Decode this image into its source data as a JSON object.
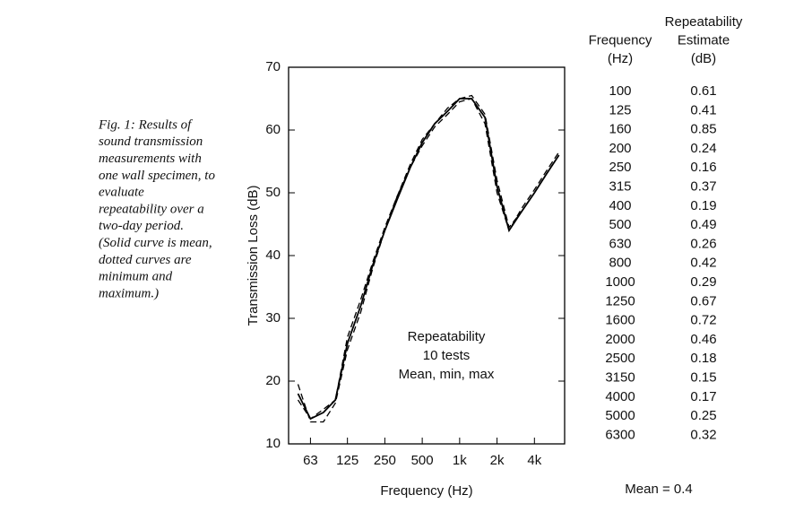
{
  "caption": [
    "Fig. 1: Results of",
    "sound transmission",
    "measurements with",
    "one wall specimen, to",
    "evaluate",
    "repeatability over a",
    "two-day period.",
    "(Solid curve is mean,",
    "dotted curves are",
    "minimum and",
    "maximum.)"
  ],
  "chart_data": {
    "type": "line",
    "x_label": "Frequency (Hz)",
    "y_label": "Transmission Loss (dB)",
    "annotation": [
      "Repeatability",
      "10 tests",
      "Mean, min, max"
    ],
    "x": [
      50,
      63,
      80,
      100,
      125,
      160,
      200,
      250,
      315,
      400,
      500,
      630,
      800,
      1000,
      1250,
      1600,
      2000,
      2500,
      3150,
      4000,
      5000,
      6300
    ],
    "x_log": true,
    "xlim": [
      42,
      7000
    ],
    "xticks": [
      63,
      125,
      250,
      500,
      {
        "value": 1000,
        "label": "1k"
      },
      {
        "value": 2000,
        "label": "2k"
      },
      {
        "value": 4000,
        "label": "4k"
      }
    ],
    "ylim": [
      10,
      70
    ],
    "yticks": [
      10,
      20,
      30,
      40,
      50,
      60,
      70
    ],
    "series": [
      {
        "color": "#000000",
        "dash": false,
        "values": [
          18,
          14,
          15,
          17,
          26,
          32,
          38.5,
          44,
          49,
          54,
          58,
          61,
          63,
          65,
          65,
          62,
          51,
          44,
          47,
          50,
          53,
          56
        ]
      },
      {
        "color": "#000000",
        "dash": true,
        "values": [
          19.5,
          13.5,
          13.5,
          16.5,
          25,
          31,
          38,
          44,
          49.5,
          54,
          57.5,
          60.5,
          62.5,
          64.5,
          65,
          61,
          50,
          44,
          47.5,
          50.5,
          53.5,
          56.5
        ]
      },
      {
        "color": "#000000",
        "dash": true,
        "values": [
          17,
          14,
          15.5,
          17,
          27,
          33,
          39,
          44.5,
          49.5,
          54.5,
          58.5,
          61,
          63.5,
          65,
          65.5,
          62.5,
          52,
          44.5,
          47,
          50,
          53,
          56
        ]
      }
    ]
  },
  "table": {
    "header": [
      [
        "Frequency",
        "(Hz)"
      ],
      [
        "Repeatability",
        "Estimate",
        "(dB)"
      ]
    ],
    "rows": [
      [
        "100",
        "0.61"
      ],
      [
        "125",
        "0.41"
      ],
      [
        "160",
        "0.85"
      ],
      [
        "200",
        "0.24"
      ],
      [
        "250",
        "0.16"
      ],
      [
        "315",
        "0.37"
      ],
      [
        "400",
        "0.19"
      ],
      [
        "500",
        "0.49"
      ],
      [
        "630",
        "0.26"
      ],
      [
        "800",
        "0.42"
      ],
      [
        "1000",
        "0.29"
      ],
      [
        "1250",
        "0.67"
      ],
      [
        "1600",
        "0.72"
      ],
      [
        "2000",
        "0.46"
      ],
      [
        "2500",
        "0.18"
      ],
      [
        "3150",
        "0.15"
      ],
      [
        "4000",
        "0.17"
      ],
      [
        "5000",
        "0.25"
      ],
      [
        "6300",
        "0.32"
      ]
    ],
    "footer": "Mean = 0.4"
  }
}
